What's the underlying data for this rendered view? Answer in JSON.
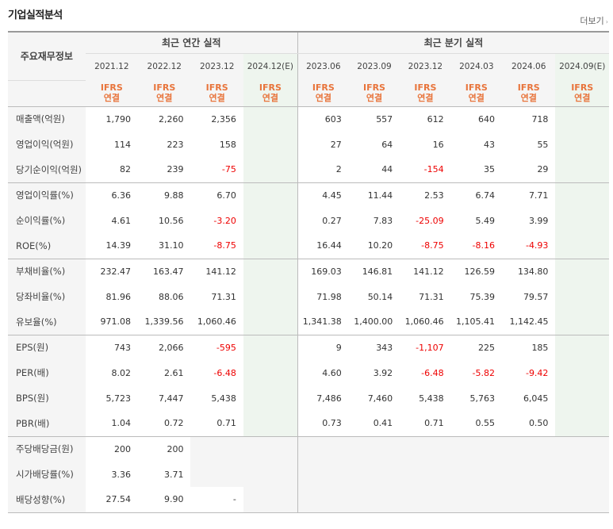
{
  "header": {
    "title": "기업실적분석",
    "more_label": "더보기",
    "more_arrow": "›"
  },
  "table": {
    "row_label_header": "주요재무정보",
    "groups": {
      "annual": "최근 연간 실적",
      "quarterly": "최근 분기 실적"
    },
    "periods": [
      "2021.12",
      "2022.12",
      "2023.12",
      "2024.12(E)",
      "2023.06",
      "2023.09",
      "2023.12",
      "2024.03",
      "2024.06",
      "2024.09(E)"
    ],
    "standard": {
      "line1": "IFRS",
      "line2": "연결"
    },
    "rows": [
      {
        "label": "매출액(억원)",
        "values": [
          "1,790",
          "2,260",
          "2,356",
          "",
          "603",
          "557",
          "612",
          "640",
          "718",
          ""
        ]
      },
      {
        "label": "영업이익(억원)",
        "values": [
          "114",
          "223",
          "158",
          "",
          "27",
          "64",
          "16",
          "43",
          "55",
          ""
        ]
      },
      {
        "label": "당기순이익(억원)",
        "values": [
          "82",
          "239",
          "-75",
          "",
          "2",
          "44",
          "-154",
          "35",
          "29",
          ""
        ]
      },
      {
        "label": "영업이익률(%)",
        "values": [
          "6.36",
          "9.88",
          "6.70",
          "",
          "4.45",
          "11.44",
          "2.53",
          "6.74",
          "7.71",
          ""
        ]
      },
      {
        "label": "순이익률(%)",
        "values": [
          "4.61",
          "10.56",
          "-3.20",
          "",
          "0.27",
          "7.83",
          "-25.09",
          "5.49",
          "3.99",
          ""
        ]
      },
      {
        "label": "ROE(%)",
        "values": [
          "14.39",
          "31.10",
          "-8.75",
          "",
          "16.44",
          "10.20",
          "-8.75",
          "-8.16",
          "-4.93",
          ""
        ]
      },
      {
        "label": "부채비율(%)",
        "values": [
          "232.47",
          "163.47",
          "141.12",
          "",
          "169.03",
          "146.81",
          "141.12",
          "126.59",
          "134.80",
          ""
        ]
      },
      {
        "label": "당좌비율(%)",
        "values": [
          "81.96",
          "88.06",
          "71.31",
          "",
          "71.98",
          "50.14",
          "71.31",
          "75.39",
          "79.57",
          ""
        ]
      },
      {
        "label": "유보율(%)",
        "values": [
          "971.08",
          "1,339.56",
          "1,060.46",
          "",
          "1,341.38",
          "1,400.00",
          "1,060.46",
          "1,105.41",
          "1,142.45",
          ""
        ]
      },
      {
        "label": "EPS(원)",
        "values": [
          "743",
          "2,066",
          "-595",
          "",
          "9",
          "343",
          "-1,107",
          "225",
          "185",
          ""
        ]
      },
      {
        "label": "PER(배)",
        "values": [
          "8.02",
          "2.61",
          "-6.48",
          "",
          "4.60",
          "3.92",
          "-6.48",
          "-5.82",
          "-9.42",
          ""
        ]
      },
      {
        "label": "BPS(원)",
        "values": [
          "5,723",
          "7,447",
          "5,438",
          "",
          "7,486",
          "7,460",
          "5,438",
          "5,763",
          "6,045",
          ""
        ]
      },
      {
        "label": "PBR(배)",
        "values": [
          "1.04",
          "0.72",
          "0.71",
          "",
          "0.73",
          "0.41",
          "0.71",
          "0.55",
          "0.50",
          ""
        ]
      },
      {
        "label": "주당배당금(원)",
        "values": [
          "200",
          "200",
          "",
          "",
          "",
          "",
          "",
          "",
          "",
          ""
        ]
      },
      {
        "label": "시가배당률(%)",
        "values": [
          "3.36",
          "3.71",
          "",
          "",
          "",
          "",
          "",
          "",
          "",
          ""
        ]
      },
      {
        "label": "배당성향(%)",
        "values": [
          "27.54",
          "9.90",
          "-",
          "",
          "",
          "",
          "",
          "",
          "",
          ""
        ]
      }
    ]
  }
}
